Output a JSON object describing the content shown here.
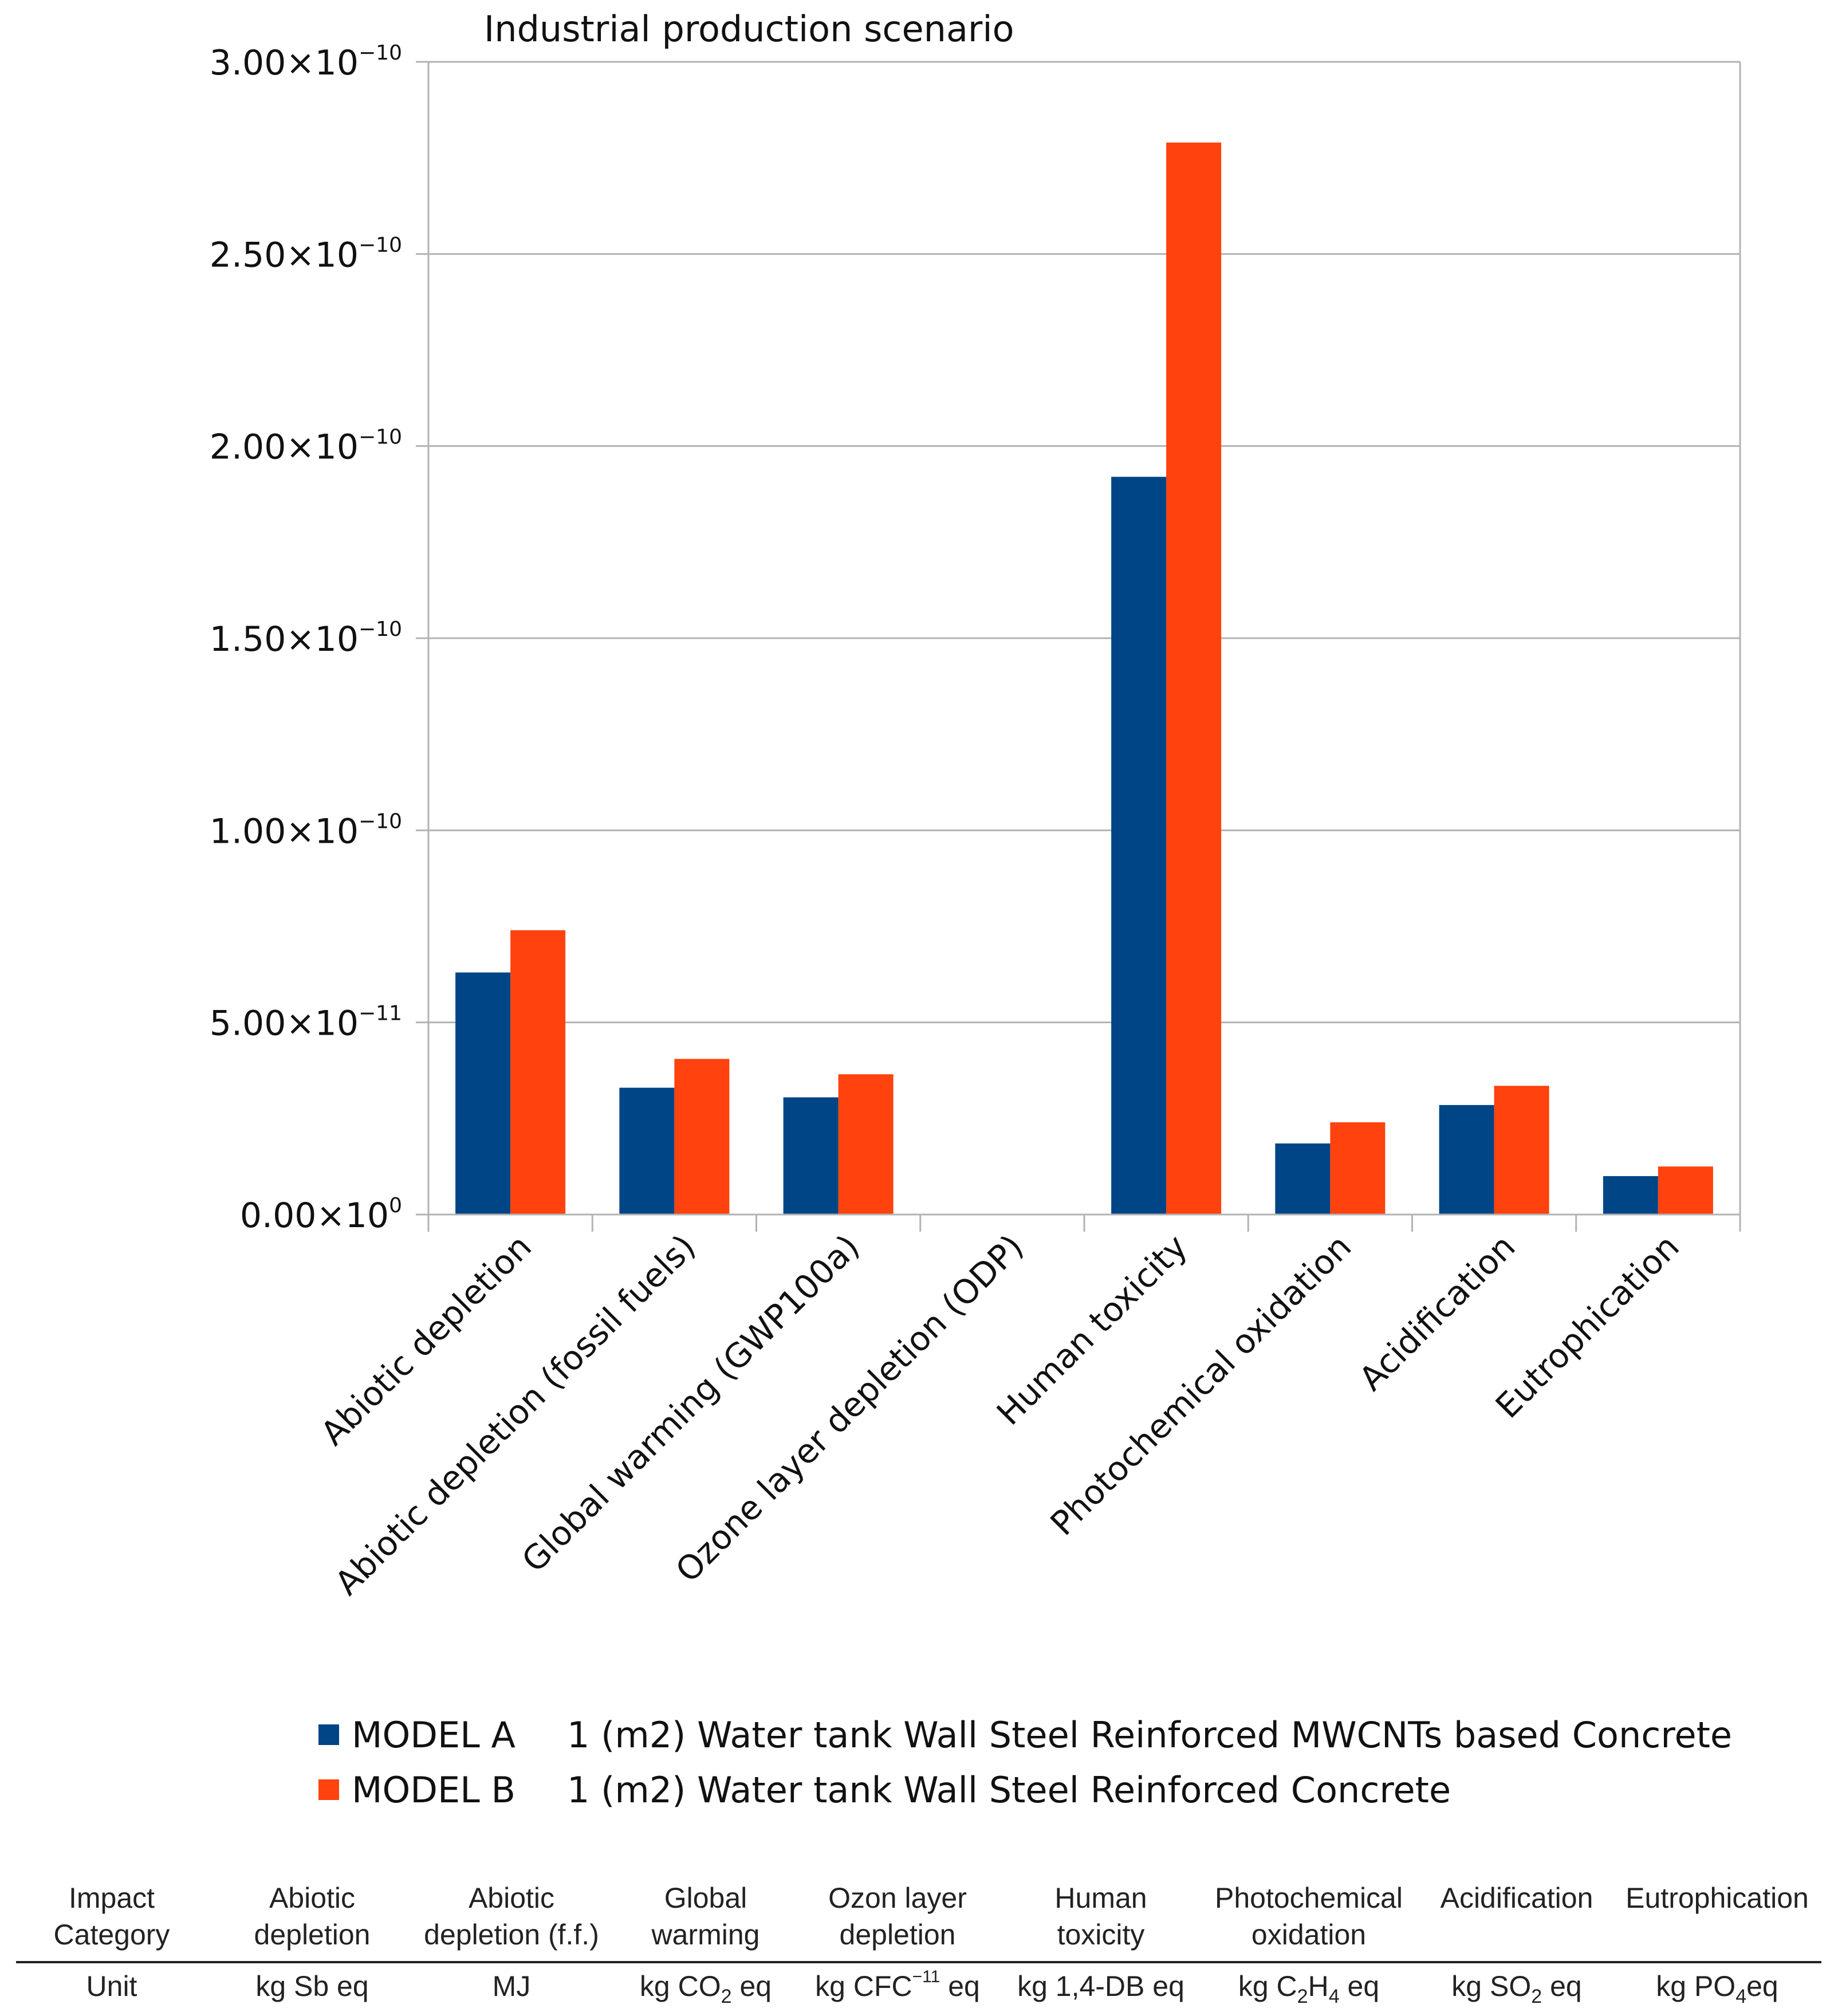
{
  "chart_data": {
    "type": "bar",
    "title": "Industrial production scenario",
    "categories": [
      "Abiotic depletion",
      "Abiotic depletion (fossil fuels)",
      "Global warming (GWP100a)",
      "Ozone layer depletion (ODP)",
      "Human toxicity",
      "Photochemical oxidation",
      "Acidification",
      "Eutrophication"
    ],
    "series": [
      {
        "name": "MODEL A",
        "description": "1 (m2) Water tank Wall Steel Reinforced MWCNTs based Concrete",
        "color": "#004586",
        "values": [
          6.3e-11,
          3.3e-11,
          3.05e-11,
          1e-13,
          1.92e-10,
          1.85e-11,
          2.85e-11,
          1e-11
        ]
      },
      {
        "name": "MODEL B",
        "description": "1 (m2) Water tank Wall Steel Reinforced Concrete",
        "color": "#FF420E",
        "values": [
          7.4e-11,
          4.05e-11,
          3.65e-11,
          1.5e-13,
          2.79e-10,
          2.4e-11,
          3.35e-11,
          1.25e-11
        ]
      }
    ],
    "ylim": [
      0,
      3e-10
    ],
    "y_ticks": [
      {
        "value": 0,
        "mantissa": "0.00×10",
        "exp": "0"
      },
      {
        "value": 5e-11,
        "mantissa": "5.00×10",
        "exp": "−11"
      },
      {
        "value": 1e-10,
        "mantissa": "1.00×10",
        "exp": "−10"
      },
      {
        "value": 1.5e-10,
        "mantissa": "1.50×10",
        "exp": "−10"
      },
      {
        "value": 2e-10,
        "mantissa": "2.00×10",
        "exp": "−10"
      },
      {
        "value": 2.5e-10,
        "mantissa": "2.50×10",
        "exp": "−10"
      },
      {
        "value": 3e-10,
        "mantissa": "3.00×10",
        "exp": "−10"
      }
    ],
    "grid": true,
    "legend_position": "bottom"
  },
  "table": {
    "headers": [
      [
        "Impact",
        "Category"
      ],
      [
        "Abiotic",
        "depletion"
      ],
      [
        "Abiotic",
        "depletion (f.f.)"
      ],
      [
        "Global",
        "warming"
      ],
      [
        "Ozon layer",
        "depletion"
      ],
      [
        "Human",
        "toxicity"
      ],
      [
        "Photochemical",
        "oxidation"
      ],
      [
        "Acidification",
        ""
      ],
      [
        "Eutrophication",
        ""
      ]
    ],
    "units": [
      {
        "text": "Unit"
      },
      {
        "text": "kg Sb eq"
      },
      {
        "text": "MJ"
      },
      {
        "text": "kg CO",
        "sub": "2",
        "after": " eq"
      },
      {
        "text": "kg CFC",
        "sup": "−11",
        "after": " eq"
      },
      {
        "text": "kg 1,4-DB eq"
      },
      {
        "text": "kg C",
        "sub": "2",
        "mid": "H",
        "sub2": "4",
        "after": " eq"
      },
      {
        "text": "kg SO",
        "sub": "2",
        "after": " eq"
      },
      {
        "text": "kg PO",
        "sub": "4",
        "after": "eq"
      }
    ]
  }
}
